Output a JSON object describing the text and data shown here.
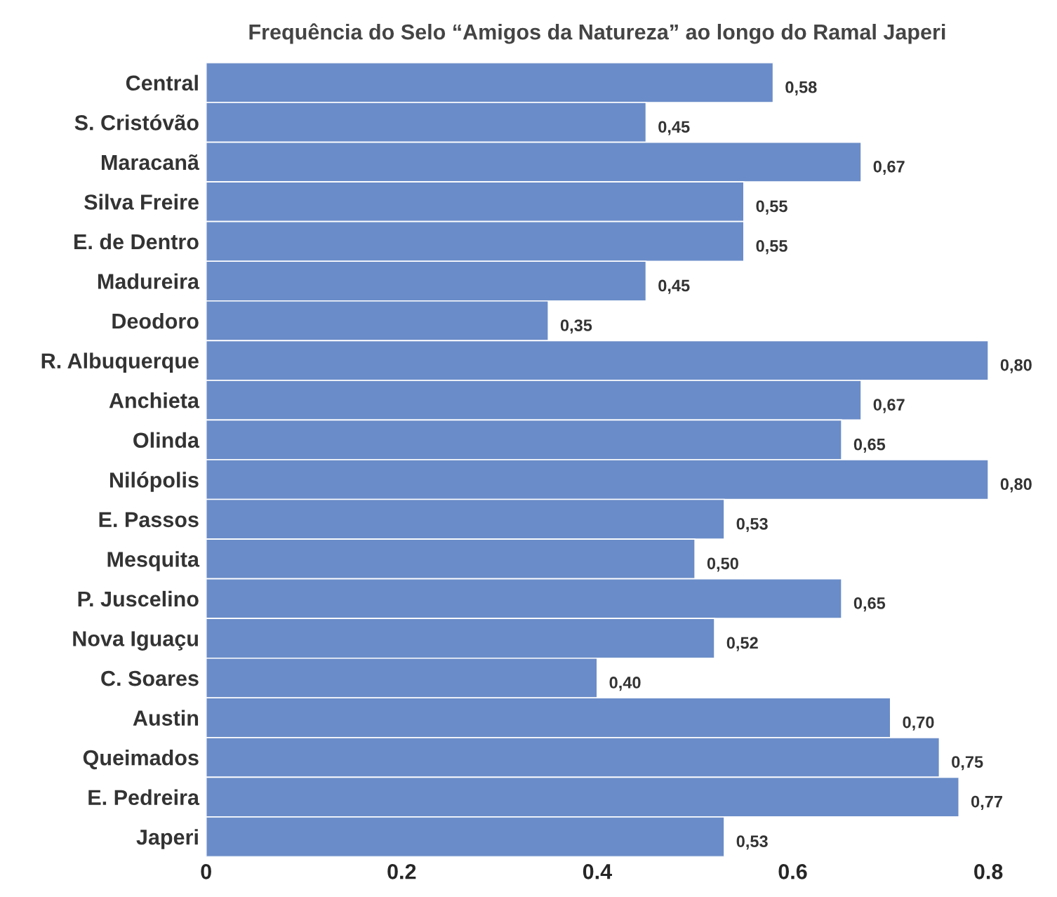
{
  "chart_data": {
    "type": "bar",
    "orientation": "horizontal",
    "title": "Frequência do Selo “Amigos da Natureza” ao longo do Ramal Japeri",
    "categories": [
      "Central",
      "S. Cristóvão",
      "Maracanã",
      "Silva Freire",
      "E. de Dentro",
      "Madureira",
      "Deodoro",
      "R. Albuquerque",
      "Anchieta",
      "Olinda",
      "Nilópolis",
      "E. Passos",
      "Mesquita",
      "P. Juscelino",
      "Nova Iguaçu",
      "C. Soares",
      "Austin",
      "Queimados",
      "E. Pedreira",
      "Japeri"
    ],
    "values": [
      0.58,
      0.45,
      0.67,
      0.55,
      0.55,
      0.45,
      0.35,
      0.8,
      0.67,
      0.65,
      0.8,
      0.53,
      0.5,
      0.65,
      0.52,
      0.4,
      0.7,
      0.75,
      0.77,
      0.53
    ],
    "value_labels": [
      "0,58",
      "0,45",
      "0,67",
      "0,55",
      "0,55",
      "0,45",
      "0,35",
      "0,80",
      "0,67",
      "0,65",
      "0,80",
      "0,53",
      "0,50",
      "0,65",
      "0,52",
      "0,40",
      "0,70",
      "0,75",
      "0,77",
      "0,53"
    ],
    "color": "#6a8cc8",
    "xlim": [
      0,
      0.8
    ],
    "xticks": [
      0,
      0.2,
      0.4,
      0.6,
      0.8
    ],
    "grid": false
  }
}
